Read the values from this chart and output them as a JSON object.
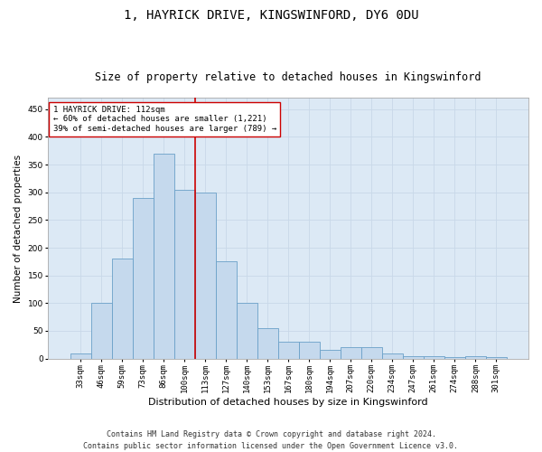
{
  "title": "1, HAYRICK DRIVE, KINGSWINFORD, DY6 0DU",
  "subtitle": "Size of property relative to detached houses in Kingswinford",
  "xlabel": "Distribution of detached houses by size in Kingswinford",
  "ylabel": "Number of detached properties",
  "footer_line1": "Contains HM Land Registry data © Crown copyright and database right 2024.",
  "footer_line2": "Contains public sector information licensed under the Open Government Licence v3.0.",
  "categories": [
    "33sqm",
    "46sqm",
    "59sqm",
    "73sqm",
    "86sqm",
    "100sqm",
    "113sqm",
    "127sqm",
    "140sqm",
    "153sqm",
    "167sqm",
    "180sqm",
    "194sqm",
    "207sqm",
    "220sqm",
    "234sqm",
    "247sqm",
    "261sqm",
    "274sqm",
    "288sqm",
    "301sqm"
  ],
  "values": [
    10,
    100,
    180,
    290,
    370,
    305,
    300,
    175,
    100,
    55,
    30,
    30,
    15,
    20,
    20,
    10,
    5,
    5,
    2,
    5,
    2
  ],
  "bar_color": "#c5d9ed",
  "bar_edge_color": "#6aa0c8",
  "vline_x_index": 6,
  "vline_color": "#cc0000",
  "annotation_text": "1 HAYRICK DRIVE: 112sqm\n← 60% of detached houses are smaller (1,221)\n39% of semi-detached houses are larger (789) →",
  "annotation_box_color": "#ffffff",
  "annotation_box_edge": "#cc0000",
  "ylim": [
    0,
    470
  ],
  "yticks": [
    0,
    50,
    100,
    150,
    200,
    250,
    300,
    350,
    400,
    450
  ],
  "plot_bg_color": "#dce9f5",
  "background_color": "#ffffff",
  "grid_color": "#c8d8e8",
  "title_fontsize": 10,
  "subtitle_fontsize": 8.5,
  "xlabel_fontsize": 8,
  "ylabel_fontsize": 7.5,
  "tick_fontsize": 6.5,
  "annotation_fontsize": 6.5,
  "footer_fontsize": 6
}
